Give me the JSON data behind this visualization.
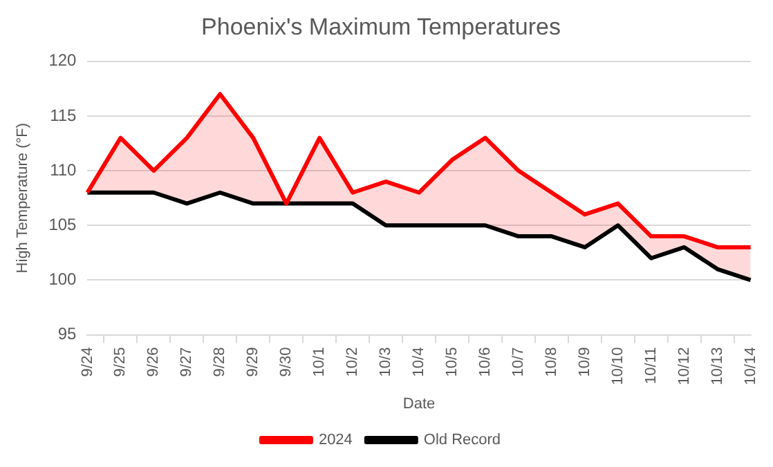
{
  "chart_data": {
    "type": "line",
    "title": "Phoenix's Maximum Temperatures",
    "xlabel": "Date",
    "ylabel": "High Temperature (°F)",
    "categories": [
      "9/24",
      "9/25",
      "9/26",
      "9/27",
      "9/28",
      "9/29",
      "9/30",
      "10/1",
      "10/2",
      "10/3",
      "10/4",
      "10/5",
      "10/6",
      "10/7",
      "10/8",
      "10/9",
      "10/10",
      "10/11",
      "10/12",
      "10/13",
      "10/14"
    ],
    "series": [
      {
        "name": "2024",
        "color": "#ff0000",
        "values": [
          108,
          113,
          110,
          113,
          117,
          113,
          107,
          113,
          108,
          109,
          108,
          111,
          113,
          110,
          108,
          106,
          107,
          104,
          104,
          103,
          103
        ],
        "lower": [
          108,
          108,
          108,
          107,
          108,
          107,
          107,
          107,
          107,
          105,
          105,
          105,
          105,
          104,
          104,
          103,
          105,
          102,
          103,
          101,
          100
        ],
        "upper": [
          108,
          113,
          110,
          113,
          117,
          113,
          107,
          113,
          108,
          109,
          108,
          111,
          113,
          110,
          108,
          106,
          107,
          104,
          104,
          103,
          103
        ]
      },
      {
        "name": "Old Record",
        "color": "#000000",
        "values": [
          108,
          108,
          108,
          107,
          108,
          107,
          107,
          107,
          107,
          105,
          105,
          105,
          105,
          104,
          104,
          103,
          105,
          102,
          103,
          101,
          100
        ]
      }
    ],
    "ylim": [
      95,
      120
    ],
    "yticks": [
      95,
      100,
      105,
      110,
      115,
      120
    ],
    "grid": "y",
    "legend": "bottom",
    "marker": "none",
    "line_style": "solid"
  }
}
